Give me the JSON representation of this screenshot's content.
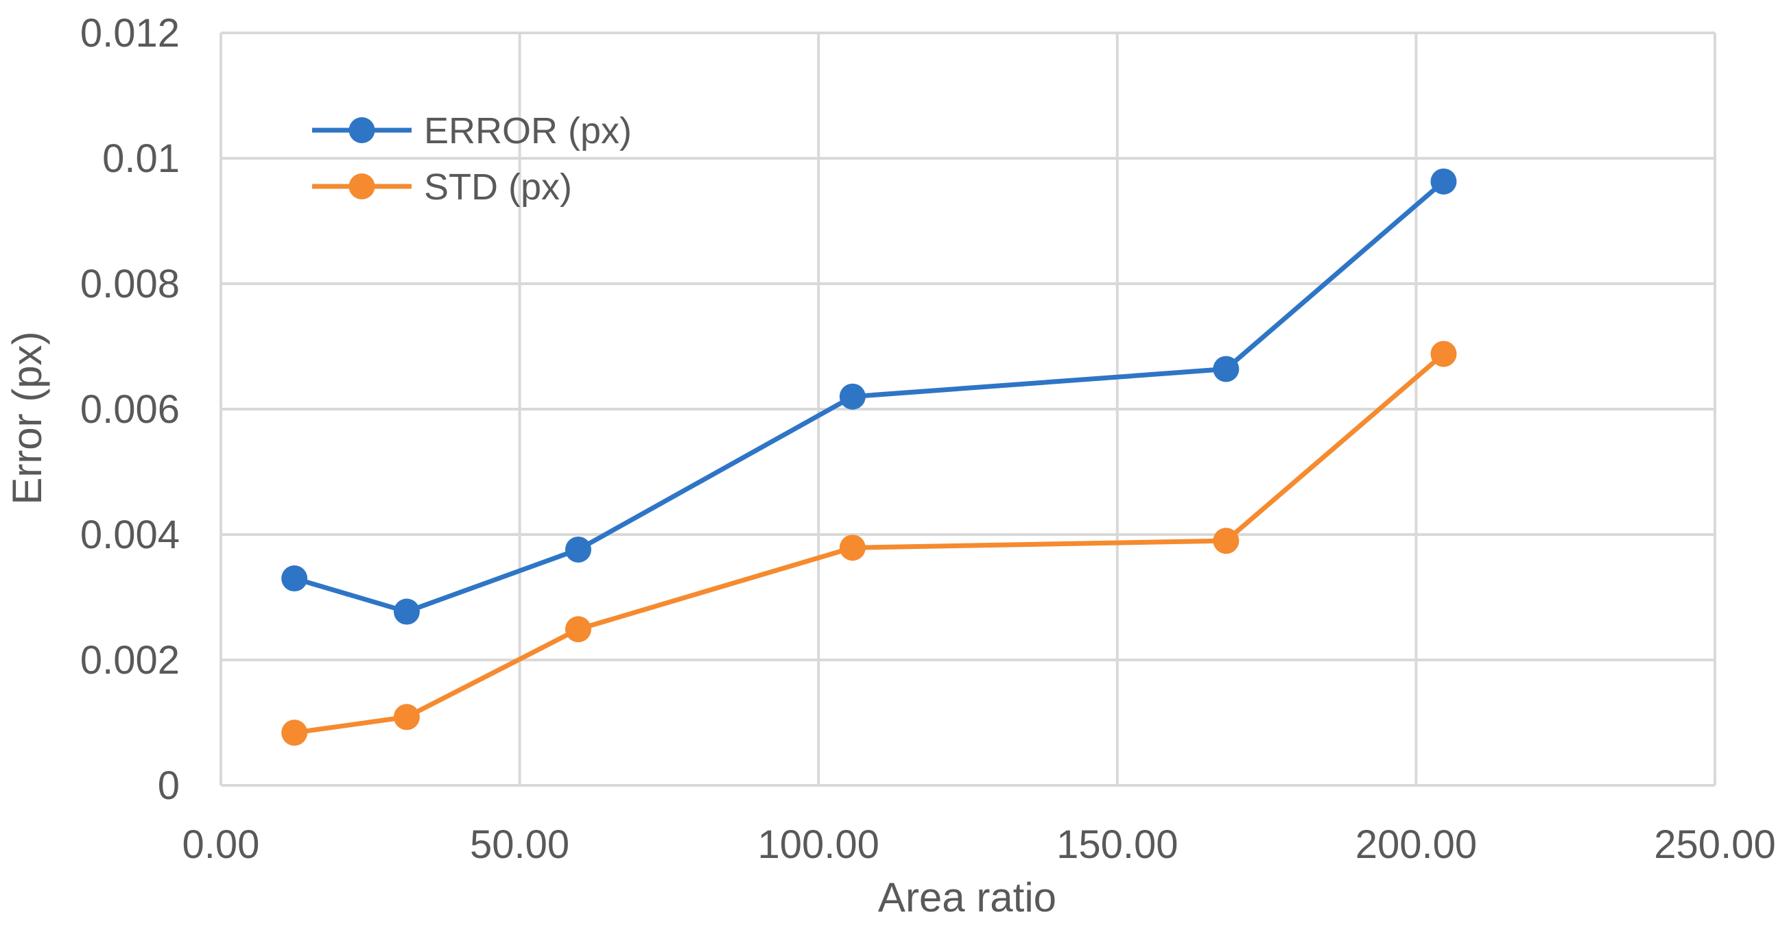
{
  "chart_data": {
    "type": "line",
    "title": "",
    "xlabel": "Area ratio",
    "ylabel": "Error (px)",
    "xlim": [
      0,
      250
    ],
    "ylim": [
      0,
      0.012
    ],
    "x_ticks": [
      0,
      50,
      100,
      150,
      200,
      250
    ],
    "x_tick_labels": [
      "0.00",
      "50.00",
      "100.00",
      "150.00",
      "200.00",
      "250.00"
    ],
    "y_ticks": [
      0,
      0.002,
      0.004,
      0.006,
      0.008,
      0.01,
      0.012
    ],
    "y_tick_labels": [
      "0",
      "0.002",
      "0.004",
      "0.006",
      "0.008",
      "0.01",
      "0.012"
    ],
    "grid": true,
    "legend_position": "top-left",
    "x": [
      12.3,
      31.1,
      59.8,
      105.7,
      168.2,
      204.6
    ],
    "series": [
      {
        "name": "ERROR (px)",
        "color": "#2E75C6",
        "values": [
          0.0033,
          0.00277,
          0.00376,
          0.0062,
          0.00664,
          0.00963
        ]
      },
      {
        "name": "STD (px)",
        "color": "#F58A2F",
        "values": [
          0.00084,
          0.00109,
          0.00249,
          0.00379,
          0.0039,
          0.00688
        ]
      }
    ]
  }
}
